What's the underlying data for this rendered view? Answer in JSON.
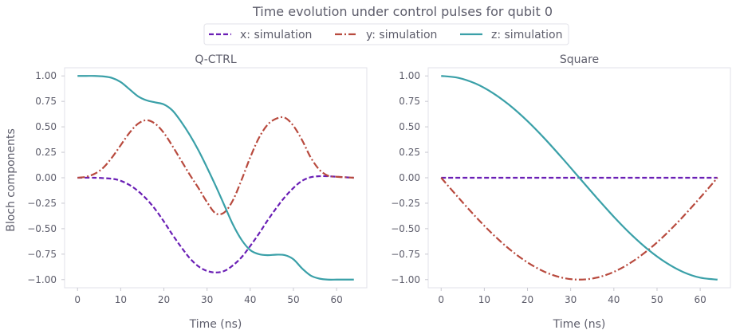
{
  "figure": {
    "suptitle": "Time evolution under control pulses for qubit 0",
    "ylabel": "Bloch components"
  },
  "legend": [
    {
      "label": "x: simulation",
      "color": "#6a1fb5",
      "style": "dashed"
    },
    {
      "label": "y: simulation",
      "color": "#b84a3e",
      "style": "dashdot"
    },
    {
      "label": "z: simulation",
      "color": "#3aa0a8",
      "style": "solid"
    }
  ],
  "chart_data": [
    {
      "type": "line",
      "title": "Q-CTRL",
      "xlabel": "Time (ns)",
      "ylabel": "Bloch components",
      "xlim": [
        -3,
        67
      ],
      "ylim": [
        -1.08,
        1.08
      ],
      "xticks": [
        0,
        10,
        20,
        30,
        40,
        50,
        60
      ],
      "yticks": [
        1.0,
        0.75,
        0.5,
        0.25,
        0.0,
        -0.25,
        -0.5,
        -0.75,
        -1.0
      ],
      "ytick_labels": [
        "1.00",
        "0.75",
        "0.50",
        "0.25",
        "0.00",
        "−0.25",
        "−0.50",
        "−0.75",
        "−1.00"
      ],
      "grid": false,
      "series": [
        {
          "name": "x: simulation",
          "x": [
            0,
            4,
            8,
            10,
            12,
            14,
            16,
            18,
            20,
            22,
            24,
            26,
            28,
            30,
            32,
            34,
            36,
            38,
            40,
            42,
            44,
            46,
            48,
            50,
            52,
            54,
            56,
            58,
            60,
            62,
            64
          ],
          "values": [
            0.0,
            0.0,
            -0.01,
            -0.03,
            -0.07,
            -0.13,
            -0.21,
            -0.31,
            -0.43,
            -0.56,
            -0.68,
            -0.79,
            -0.87,
            -0.915,
            -0.93,
            -0.915,
            -0.86,
            -0.78,
            -0.67,
            -0.55,
            -0.42,
            -0.3,
            -0.19,
            -0.1,
            -0.03,
            0.005,
            0.015,
            0.015,
            0.01,
            0.005,
            0.0
          ]
        },
        {
          "name": "y: simulation",
          "x": [
            0,
            2,
            4,
            6,
            8,
            10,
            12,
            14,
            16,
            18,
            20,
            22,
            24,
            26,
            28,
            30,
            32,
            34,
            36,
            38,
            40,
            42,
            44,
            46,
            48,
            50,
            52,
            54,
            56,
            58,
            60,
            62,
            64
          ],
          "values": [
            0.0,
            0.01,
            0.04,
            0.1,
            0.2,
            0.32,
            0.44,
            0.53,
            0.565,
            0.53,
            0.44,
            0.31,
            0.17,
            0.03,
            -0.1,
            -0.24,
            -0.35,
            -0.34,
            -0.22,
            -0.02,
            0.2,
            0.39,
            0.52,
            0.58,
            0.59,
            0.51,
            0.37,
            0.2,
            0.08,
            0.02,
            0.01,
            0.005,
            0.0
          ]
        },
        {
          "name": "z: simulation",
          "x": [
            0,
            2,
            4,
            6,
            8,
            10,
            12,
            14,
            16,
            18,
            20,
            22,
            24,
            26,
            28,
            30,
            32,
            34,
            36,
            38,
            40,
            42,
            44,
            46,
            48,
            50,
            52,
            54,
            56,
            58,
            60,
            62,
            64
          ],
          "values": [
            1.0,
            1.0,
            1.0,
            0.995,
            0.98,
            0.94,
            0.87,
            0.8,
            0.76,
            0.74,
            0.72,
            0.66,
            0.55,
            0.42,
            0.27,
            0.1,
            -0.08,
            -0.27,
            -0.46,
            -0.61,
            -0.71,
            -0.75,
            -0.76,
            -0.755,
            -0.76,
            -0.8,
            -0.89,
            -0.96,
            -0.99,
            -1.0,
            -1.0,
            -1.0,
            -1.0
          ]
        }
      ]
    },
    {
      "type": "line",
      "title": "Square",
      "xlabel": "Time (ns)",
      "ylabel": "",
      "xlim": [
        -3,
        67
      ],
      "ylim": [
        -1.08,
        1.08
      ],
      "xticks": [
        0,
        10,
        20,
        30,
        40,
        50,
        60
      ],
      "yticks": [
        1.0,
        0.75,
        0.5,
        0.25,
        0.0,
        -0.25,
        -0.5,
        -0.75,
        -1.0
      ],
      "ytick_labels": [
        "1.00",
        "0.75",
        "0.50",
        "0.25",
        "0.00",
        "−0.25",
        "−0.50",
        "−0.75",
        "−1.00"
      ],
      "grid": false,
      "series": [
        {
          "name": "x: simulation",
          "x": [
            0,
            64
          ],
          "values": [
            0.0,
            0.0
          ]
        },
        {
          "name": "y: simulation",
          "x": [
            0,
            4,
            8,
            12,
            16,
            20,
            24,
            28,
            32,
            36,
            40,
            44,
            48,
            52,
            56,
            60,
            64
          ],
          "values": [
            0.0,
            -0.195,
            -0.383,
            -0.556,
            -0.707,
            -0.831,
            -0.924,
            -0.981,
            -1.0,
            -0.981,
            -0.924,
            -0.831,
            -0.707,
            -0.556,
            -0.383,
            -0.195,
            0.0
          ]
        },
        {
          "name": "z: simulation",
          "x": [
            0,
            4,
            8,
            12,
            16,
            20,
            24,
            28,
            32,
            36,
            40,
            44,
            48,
            52,
            56,
            60,
            64
          ],
          "values": [
            1.0,
            0.981,
            0.924,
            0.831,
            0.707,
            0.556,
            0.383,
            0.195,
            0.0,
            -0.195,
            -0.383,
            -0.556,
            -0.707,
            -0.831,
            -0.924,
            -0.981,
            -1.0
          ]
        }
      ]
    }
  ]
}
